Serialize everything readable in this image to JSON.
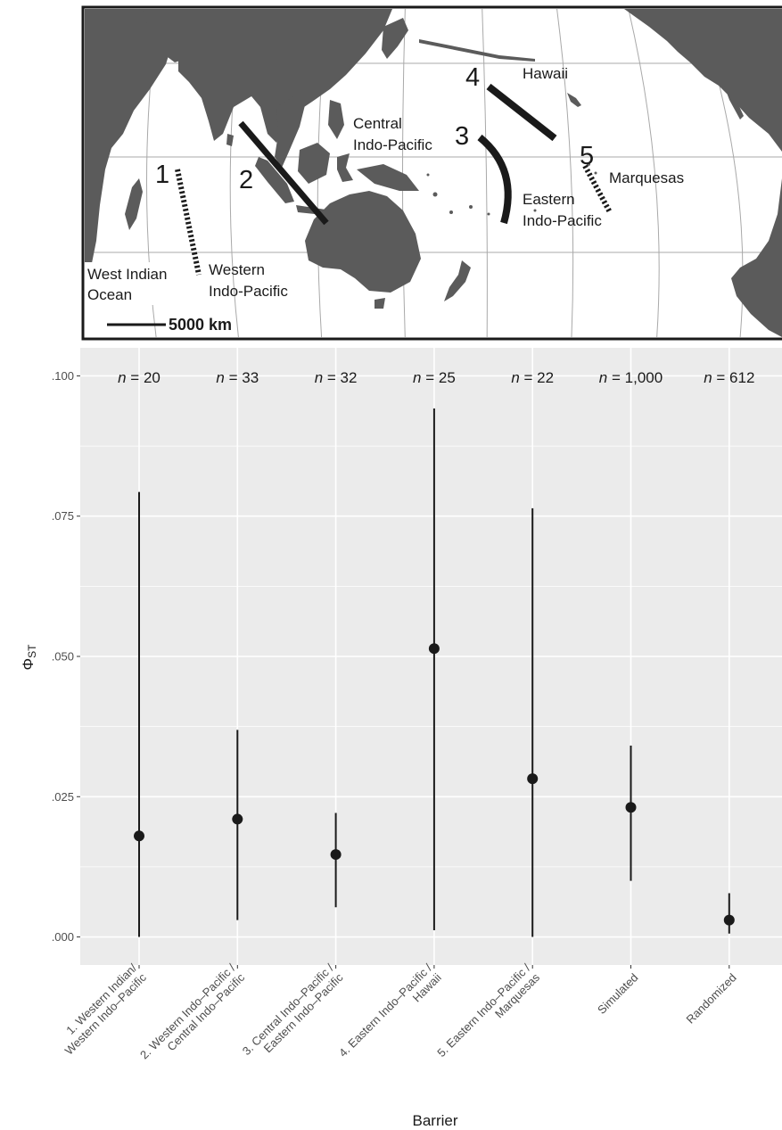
{
  "map": {
    "scale_label": "5000 km",
    "barrier_numbers": [
      "1",
      "2",
      "3",
      "4",
      "5"
    ],
    "regions": [
      {
        "id": "west-indian-ocean",
        "lines": [
          "West Indian",
          "Ocean"
        ]
      },
      {
        "id": "western-indo-pacific",
        "lines": [
          "Western",
          "Indo-Pacific"
        ]
      },
      {
        "id": "central-indo-pacific",
        "lines": [
          "Central",
          "Indo-Pacific"
        ]
      },
      {
        "id": "eastern-indo-pacific",
        "lines": [
          "Eastern",
          "Indo-Pacific"
        ]
      },
      {
        "id": "hawaii",
        "lines": [
          "Hawaii"
        ]
      },
      {
        "id": "marquesas",
        "lines": [
          "Marquesas"
        ]
      }
    ]
  },
  "chart_data": {
    "type": "scatter",
    "title": "",
    "xlabel": "Barrier",
    "ylabel_main": "Φ",
    "ylabel_sub": "ST",
    "ylim": [
      -0.005,
      0.105
    ],
    "yticks": [
      0.0,
      0.025,
      0.05,
      0.075,
      0.1
    ],
    "ytick_labels": [
      ".000",
      ".025",
      ".050",
      ".075",
      ".100"
    ],
    "n_prefix": "n",
    "categories": [
      [
        "1. Western Indian/",
        "Western Indo–Pacific"
      ],
      [
        "2. Western Indo–Pacific /",
        "Central Indo–Pacific"
      ],
      [
        "3. Central Indo–Pacific /",
        "Eastern Indo–Pacific"
      ],
      [
        "4. Eastern Indo–Pacific /",
        "Hawaii"
      ],
      [
        "5. Eastern Indo–Pacific /",
        "Marquesas"
      ],
      [
        "Simulated"
      ],
      [
        "Randomized"
      ]
    ],
    "points": [
      {
        "n": "20",
        "value": 0.018,
        "low": 0.0,
        "high": 0.0793
      },
      {
        "n": "33",
        "value": 0.021,
        "low": 0.003,
        "high": 0.0369
      },
      {
        "n": "32",
        "value": 0.0147,
        "low": 0.0053,
        "high": 0.0221
      },
      {
        "n": "25",
        "value": 0.0514,
        "low": 0.0012,
        "high": 0.0942
      },
      {
        "n": "22",
        "value": 0.0282,
        "low": 0.0,
        "high": 0.0764
      },
      {
        "n": "1,000",
        "value": 0.0231,
        "low": 0.01,
        "high": 0.0341
      },
      {
        "n": "612",
        "value": 0.003,
        "low": 0.0006,
        "high": 0.0078
      }
    ],
    "colors": {
      "panel": "#ebebeb",
      "grid": "#ffffff",
      "point": "#1a1a1a"
    }
  }
}
